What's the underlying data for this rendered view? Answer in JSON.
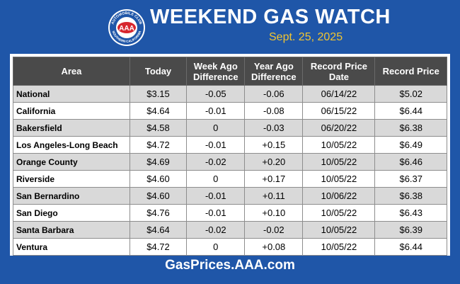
{
  "header": {
    "title": "WEEKEND GAS WATCH",
    "date": "Sept. 25, 2025",
    "logo": {
      "center_text": "AAA",
      "ring_top": "AUTOMOBILE CLUB",
      "ring_bottom": "SOUTHERN CALIFORNIA"
    }
  },
  "table": {
    "columns": [
      {
        "line1": "Area",
        "line2": ""
      },
      {
        "line1": "Today",
        "line2": ""
      },
      {
        "line1": "Week Ago",
        "line2": "Difference"
      },
      {
        "line1": "Year Ago",
        "line2": "Difference"
      },
      {
        "line1": "Record Price",
        "line2": "Date"
      },
      {
        "line1": "Record Price",
        "line2": ""
      }
    ],
    "rows": [
      [
        "National",
        "$3.15",
        "-0.05",
        "-0.06",
        "06/14/22",
        "$5.02"
      ],
      [
        "California",
        "$4.64",
        "-0.01",
        "-0.08",
        "06/15/22",
        "$6.44"
      ],
      [
        "Bakersfield",
        "$4.58",
        "0",
        "-0.03",
        "06/20/22",
        "$6.38"
      ],
      [
        "Los Angeles-Long Beach",
        "$4.72",
        "-0.01",
        "+0.15",
        "10/05/22",
        "$6.49"
      ],
      [
        "Orange County",
        "$4.69",
        "-0.02",
        "+0.20",
        "10/05/22",
        "$6.46"
      ],
      [
        "Riverside",
        "$4.60",
        "0",
        "+0.17",
        "10/05/22",
        "$6.37"
      ],
      [
        "San Bernardino",
        "$4.60",
        "-0.01",
        "+0.11",
        "10/06/22",
        "$6.38"
      ],
      [
        "San Diego",
        "$4.76",
        "-0.01",
        "+0.10",
        "10/05/22",
        "$6.43"
      ],
      [
        "Santa Barbara",
        "$4.64",
        "-0.02",
        "-0.02",
        "10/05/22",
        "$6.39"
      ],
      [
        "Ventura",
        "$4.72",
        "0",
        "+0.08",
        "10/05/22",
        "$6.44"
      ]
    ]
  },
  "footer": {
    "url": "GasPrices.AAA.com"
  },
  "colors": {
    "background": "#1f56a8",
    "header_row": "#4a4a4a",
    "shaded_row": "#d9d9d9",
    "date_text": "#f2c530",
    "logo_red": "#d7262e"
  }
}
